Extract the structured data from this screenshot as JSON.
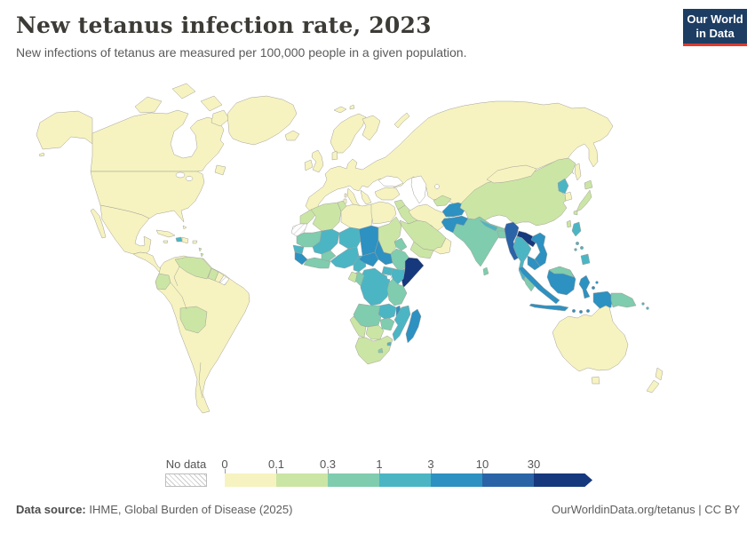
{
  "header": {
    "title": "New tetanus infection rate, 2023",
    "subtitle": "New infections of tetanus are measured per 100,000 people in a given population.",
    "logo": {
      "line1": "Our World",
      "line2": "in Data"
    }
  },
  "legend": {
    "no_data_label": "No data",
    "tick_labels": [
      "0",
      "0.1",
      "0.3",
      "1",
      "3",
      "10",
      "30"
    ]
  },
  "footer": {
    "source_label": "Data source:",
    "source_text": " IHME, Global Burden of Disease (2025)",
    "credit": "OurWorldinData.org/tetanus | CC BY"
  },
  "colors": {
    "bins": {
      "b0": "#f6f3c0",
      "b1": "#cbe5a5",
      "b2": "#7fccae",
      "b3": "#4bb5c4",
      "b4": "#2d91c1",
      "b5": "#2b63a7",
      "b6": "#16387d"
    },
    "border": "#a3a09a",
    "ocean": "#ffffff",
    "no_data_hatch_line": "#cccccc",
    "logo_bg": "#1d3d63",
    "logo_accent": "#dc3b2e"
  },
  "map_regions": {
    "alaska": "b0",
    "canada": "b0",
    "usa": "b0",
    "greenland": "b0",
    "mexico": "b0",
    "baja": "b0",
    "central-america": "b0",
    "cuba": "b0",
    "haiti": "b3",
    "dominican-republic": "b0",
    "jamaica": "b0",
    "puerto-rico": "b0",
    "bahamas": "b0",
    "newfoundland": "b0",
    "arctic-islands": "b0",
    "aleutians": "b0",
    "lesser-antilles": "b1",
    "south-america": "b0",
    "venezuela": "b1",
    "guyana": "b1",
    "suriname": "b0",
    "french-guiana": "nd",
    "ecuador": "b1",
    "bolivia": "b1",
    "iceland": "b0",
    "ireland": "b0",
    "uk": "b0",
    "eurasia": "b0",
    "scandinavia": "b0",
    "finland": "b0",
    "denmark": "b0",
    "italy": "b0",
    "sicily": "b0",
    "sardinia": "b0",
    "corsica": "b0",
    "greece": "b0",
    "crete": "b0",
    "turkey": "b0",
    "novaya-zemlya": "b0",
    "svalbard": "b0",
    "syria": "b1",
    "iraq": "b1",
    "saudi-arabia": "b1",
    "yemen": "b1",
    "oman": "b0",
    "iran": "b0",
    "central-asia": "b1",
    "afghanistan": "b4",
    "pakistan": "b4",
    "india": "b2",
    "nepal": "b3",
    "bangladesh": "b2",
    "sri-lanka": "b2",
    "china": "b1",
    "mongolia": "b0",
    "north-korea": "b3",
    "south-korea": "b0",
    "japan": "b1",
    "taiwan": "b1",
    "sakhalin": "b0",
    "myanmar": "b5",
    "laos": "b6",
    "thailand": "b3",
    "vietnam": "b4",
    "cambodia": "b4",
    "malaysia-peninsula": "b2",
    "sumatra": "b4",
    "java": "b4",
    "borneo": "b4",
    "malaysia-borneo": "b2",
    "sulawesi": "b4",
    "luzon": "b3",
    "visayas": "b3",
    "mindanao": "b3",
    "lesser-sunda": "b4",
    "maluku": "b4",
    "new-guinea-west": "b4",
    "papua-new-guinea": "b2",
    "solomon-islands": "b3",
    "australia": "b0",
    "tasmania": "b0",
    "new-zealand-north": "b0",
    "new-zealand-south": "b0",
    "morocco": "b1",
    "algeria": "b1",
    "tunisia": "b1",
    "libya": "b0",
    "egypt": "b0",
    "western-sahara": "nd",
    "mauritania": "b2",
    "mali": "b3",
    "niger": "b3",
    "chad": "b4",
    "sudan": "b1",
    "eritrea": "b2",
    "senegal": "b3",
    "guinea": "b4",
    "west-africa-coast": "b2",
    "burkina-faso": "b2",
    "nigeria": "b3",
    "cameroon": "b3",
    "central-african-republic": "b4",
    "south-sudan": "b4",
    "ethiopia": "b2",
    "somalia": "b6",
    "kenya": "b3",
    "uganda": "b3",
    "dr-congo": "b3",
    "congo": "b2",
    "gabon": "b1",
    "angola": "b2",
    "zambia": "b3",
    "malawi": "b4",
    "tanzania": "b2",
    "mozambique": "b3",
    "zimbabwe": "b2",
    "botswana": "b1",
    "namibia": "b1",
    "south-africa": "b1",
    "lesotho": "b2",
    "eswatini": "b3",
    "madagascar": "b4"
  },
  "chart_data": {
    "type": "choropleth",
    "title": "New tetanus infection rate, 2023",
    "subtitle": "New infections of tetanus are measured per 100,000 people in a given population.",
    "year": 2023,
    "unit": "new tetanus infections per 100,000 people",
    "source": "IHME, Global Burden of Disease (2025)",
    "credit": "OurWorldinData.org/tetanus | CC BY",
    "scale": {
      "type": "log-binned",
      "bin_edges": [
        0,
        0.1,
        0.3,
        1,
        3,
        10,
        30
      ],
      "open_ended_top": true,
      "bin_labels": [
        "0–0.1",
        "0.1–0.3",
        "0.3–1",
        "1–3",
        "3–10",
        "10–30",
        "30+"
      ],
      "bin_colors": [
        "#f6f3c0",
        "#cbe5a5",
        "#7fccae",
        "#4bb5c4",
        "#2d91c1",
        "#2b63a7",
        "#16387d"
      ],
      "no_data_style": "diagonal-hatch",
      "legend_position": "bottom"
    },
    "regions_by_bin": {
      "0–0.1": [
        "United States",
        "Canada",
        "Greenland",
        "Mexico",
        "Cuba",
        "Dominican Republic",
        "Brazil",
        "Colombia",
        "Peru",
        "Chile",
        "Argentina",
        "Paraguay",
        "Uruguay",
        "Suriname",
        "Europe (all countries)",
        "Russia",
        "Kazakhstan",
        "Mongolia",
        "South Korea",
        "Turkey",
        "Iran",
        "Oman",
        "Libya",
        "Egypt",
        "Australia",
        "New Zealand"
      ],
      "0.1–0.3": [
        "Venezuela",
        "Guyana",
        "Ecuador",
        "Bolivia",
        "Morocco",
        "Algeria",
        "Tunisia",
        "Sudan",
        "Gabon",
        "Botswana",
        "Namibia",
        "South Africa",
        "Syria",
        "Iraq",
        "Saudi Arabia",
        "Yemen",
        "Uzbekistan",
        "China",
        "Japan",
        "Taiwan"
      ],
      "0.3–1": [
        "India",
        "Bangladesh",
        "Sri Lanka",
        "Malaysia",
        "Papua New Guinea",
        "Mauritania",
        "Burkina Faso",
        "Ghana",
        "Cote d'Ivoire",
        "Eritrea",
        "Ethiopia",
        "Tanzania",
        "Congo",
        "Angola",
        "Zimbabwe",
        "Lesotho"
      ],
      "1–3": [
        "Haiti",
        "Nepal",
        "Thailand",
        "North Korea",
        "Philippines",
        "Mali",
        "Niger",
        "Senegal",
        "Nigeria",
        "Cameroon",
        "Kenya",
        "Uganda",
        "DR Congo",
        "Zambia",
        "Mozambique",
        "Eswatini",
        "Solomon Islands"
      ],
      "3–10": [
        "Afghanistan",
        "Pakistan",
        "Vietnam",
        "Cambodia",
        "Indonesia",
        "Chad",
        "South Sudan",
        "Central African Republic",
        "Guinea",
        "Madagascar",
        "Malawi"
      ],
      "10–30": [
        "Myanmar"
      ],
      "30+": [
        "Laos",
        "Somalia"
      ],
      "no_data": [
        "Western Sahara",
        "French Guiana"
      ]
    }
  }
}
